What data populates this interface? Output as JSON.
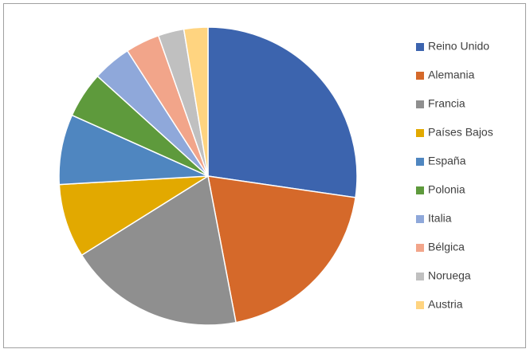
{
  "chart_data": {
    "type": "pie",
    "categories": [
      "Reino Unido",
      "Alemania",
      "Francia",
      "Países Bajos",
      "España",
      "Polonia",
      "Italia",
      "Bélgica",
      "Noruega",
      "Austria"
    ],
    "values": [
      27.3,
      19.7,
      19.1,
      8.0,
      7.6,
      5.0,
      4.2,
      3.7,
      2.8,
      2.6
    ],
    "colors": [
      "#3C64AE",
      "#D5692A",
      "#8F8F8F",
      "#E2A900",
      "#4F86C0",
      "#5E9A3C",
      "#8FA8DA",
      "#F2A58A",
      "#C0C0C0",
      "#FFD480"
    ],
    "legend": "right"
  }
}
